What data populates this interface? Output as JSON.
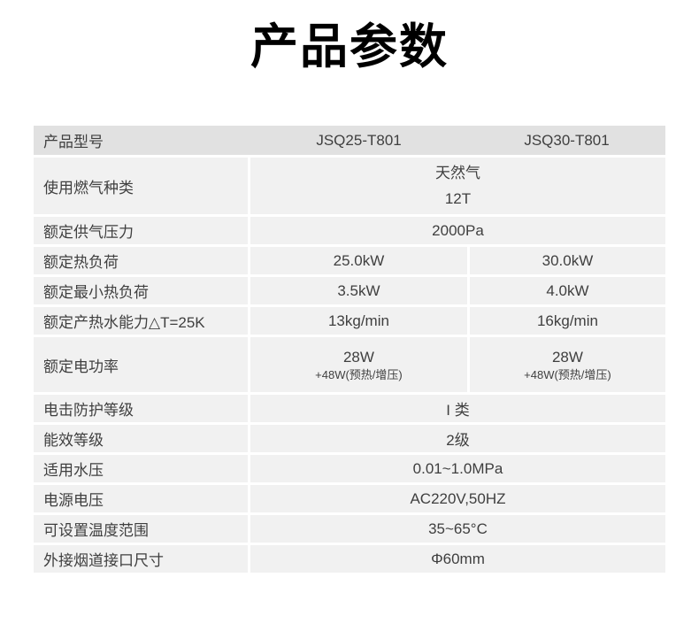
{
  "page": {
    "title": "产品参数"
  },
  "colors": {
    "header_bg": "#e1e1e1",
    "row_bg": "#f1f1f1",
    "text": "#3f3f3f",
    "title": "#000000"
  },
  "table": {
    "header": {
      "label": "产品型号",
      "model_1": "JSQ25-T801",
      "model_2": "JSQ30-T801"
    },
    "rows": [
      {
        "label": "使用燃气种类",
        "lines": [
          "天然气",
          "12T"
        ]
      },
      {
        "label": "额定供气压力",
        "lines": [
          "2000Pa"
        ]
      },
      {
        "label": "额定热负荷",
        "values": [
          "25.0kW",
          "30.0kW"
        ]
      },
      {
        "label": "额定最小热负荷",
        "values": [
          "3.5kW",
          "4.0kW"
        ]
      },
      {
        "label": "额定产热水能力△T=25K",
        "values": [
          "13kg/min",
          "16kg/min"
        ]
      },
      {
        "label": "额定电功率",
        "values_main": [
          "28W",
          "28W"
        ],
        "values_sub": [
          "+48W(预热/增压)",
          "+48W(预热/增压)"
        ]
      },
      {
        "label": "电击防护等级",
        "lines": [
          "I 类"
        ]
      },
      {
        "label": "能效等级",
        "lines": [
          "2级"
        ]
      },
      {
        "label": "适用水压",
        "lines": [
          "0.01~1.0MPa"
        ]
      },
      {
        "label": "电源电压",
        "lines": [
          "AC220V,50HZ"
        ]
      },
      {
        "label": "可设置温度范围",
        "lines": [
          "35~65°C"
        ]
      },
      {
        "label": "外接烟道接口尺寸",
        "lines": [
          "Φ60mm"
        ]
      }
    ]
  }
}
